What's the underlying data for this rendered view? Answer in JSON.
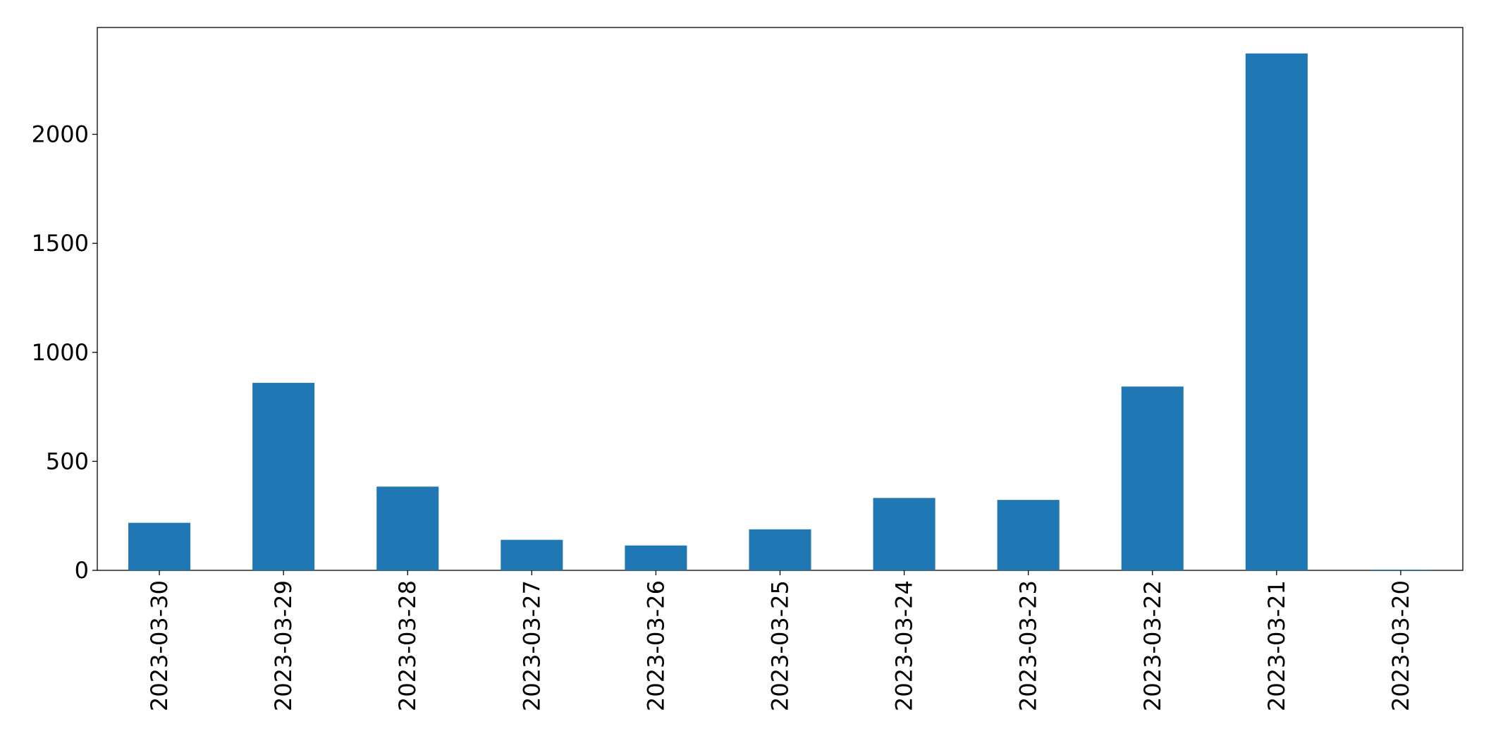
{
  "chart_data": {
    "type": "bar",
    "categories": [
      "2023-03-30",
      "2023-03-29",
      "2023-03-28",
      "2023-03-27",
      "2023-03-26",
      "2023-03-25",
      "2023-03-24",
      "2023-03-23",
      "2023-03-22",
      "2023-03-21",
      "2023-03-20"
    ],
    "values": [
      218,
      860,
      384,
      140,
      114,
      188,
      332,
      323,
      843,
      2371,
      3
    ],
    "color": "#1f77b4",
    "ylim": [
      0,
      2490
    ],
    "yticks": [
      0,
      500,
      1000,
      1500,
      2000
    ],
    "grid": false
  }
}
